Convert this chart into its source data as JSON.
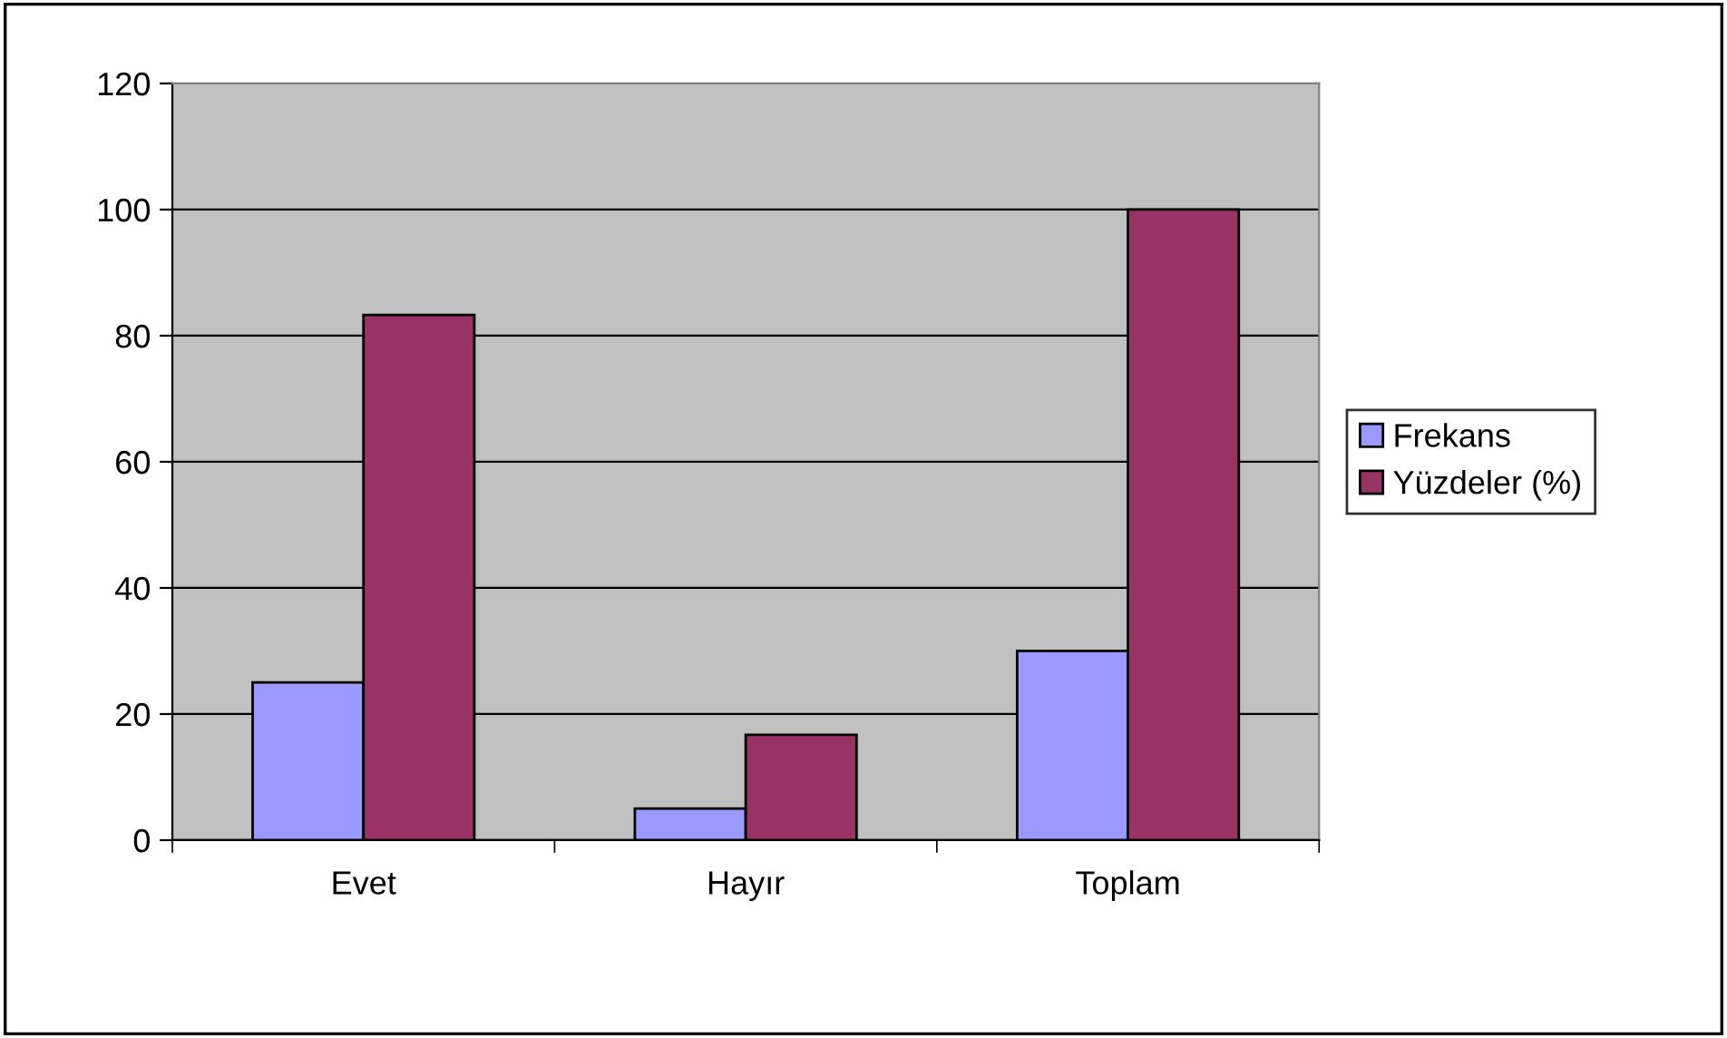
{
  "chart_data": {
    "type": "bar",
    "categories": [
      "Evet",
      "Hayır",
      "Toplam"
    ],
    "series": [
      {
        "name": "Frekans",
        "color": "#9999ff",
        "values": [
          25,
          5,
          30
        ]
      },
      {
        "name": "Yüzdeler (%)",
        "color": "#993366",
        "values": [
          83.3,
          16.7,
          100
        ]
      }
    ],
    "ylim": [
      0,
      120
    ],
    "yticks": [
      0,
      20,
      40,
      60,
      80,
      100,
      120
    ],
    "grid": "y",
    "legend": "right"
  }
}
